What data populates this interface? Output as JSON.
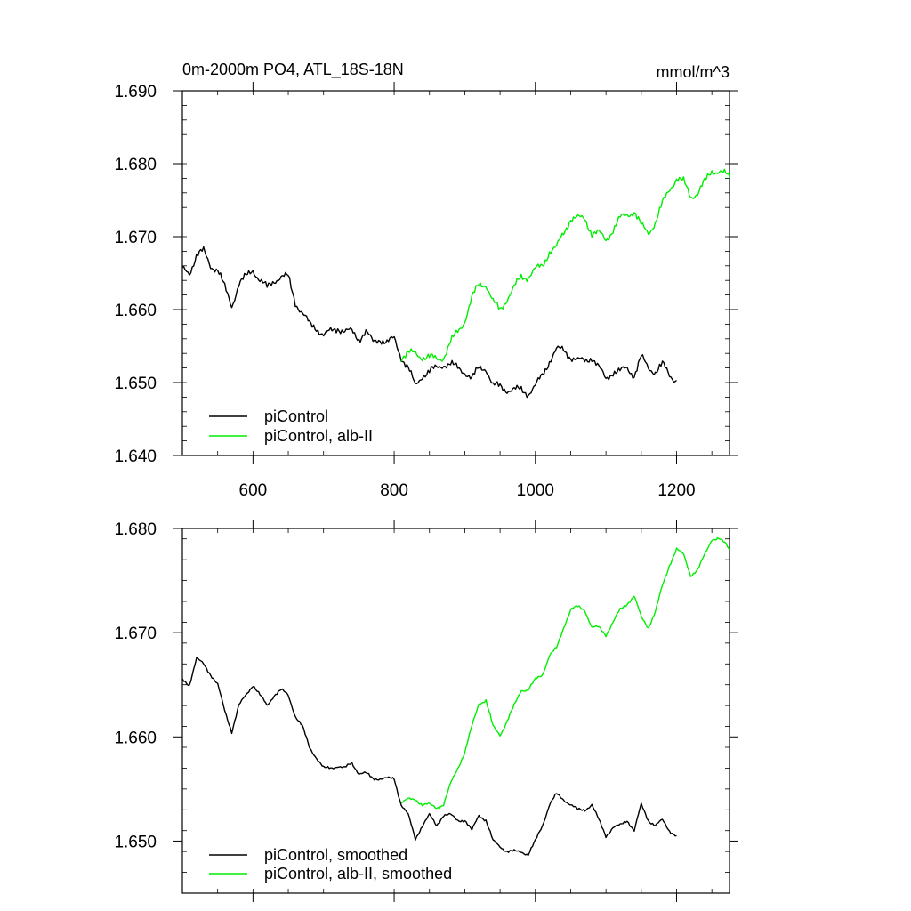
{
  "header": {
    "title": "0m-2000m PO4, ATL_18S-18N",
    "units": "mmol/m^3"
  },
  "colors": {
    "picontrol": "#000000",
    "alb_ii": "#00ee00",
    "frame": "#000000"
  },
  "chart_data": [
    {
      "type": "line",
      "title": "0m-2000m PO4, ATL_18S-18N",
      "units": "mmol/m^3",
      "xlim": [
        500,
        1275
      ],
      "ylim": [
        1.64,
        1.69
      ],
      "xticks": [
        600,
        800,
        1000,
        1200
      ],
      "xtick_labels": [
        "600",
        "800",
        "1000",
        "1200"
      ],
      "yticks": [
        1.64,
        1.65,
        1.66,
        1.67,
        1.68,
        1.69
      ],
      "ytick_labels": [
        "1.640",
        "1.650",
        "1.660",
        "1.670",
        "1.680",
        "1.690"
      ],
      "legend_placement": "bottom-left",
      "series": [
        {
          "name": "piControl",
          "color": "#000000",
          "x": [
            500,
            510,
            520,
            530,
            540,
            550,
            560,
            570,
            580,
            590,
            600,
            610,
            620,
            630,
            640,
            650,
            660,
            670,
            680,
            690,
            700,
            710,
            720,
            730,
            740,
            750,
            760,
            770,
            780,
            790,
            800,
            810,
            820,
            830,
            840,
            850,
            860,
            870,
            880,
            890,
            900,
            910,
            920,
            930,
            940,
            950,
            960,
            970,
            980,
            990,
            1000,
            1010,
            1020,
            1030,
            1040,
            1050,
            1060,
            1070,
            1080,
            1090,
            1100,
            1110,
            1120,
            1130,
            1140,
            1150,
            1160,
            1170,
            1180,
            1190,
            1200
          ],
          "y": [
            1.6655,
            1.665,
            1.6675,
            1.668,
            1.666,
            1.6655,
            1.663,
            1.6605,
            1.6635,
            1.6645,
            1.6655,
            1.664,
            1.663,
            1.664,
            1.6645,
            1.6645,
            1.661,
            1.6595,
            1.658,
            1.6575,
            1.6565,
            1.657,
            1.6575,
            1.657,
            1.657,
            1.656,
            1.657,
            1.6555,
            1.656,
            1.6555,
            1.656,
            1.6535,
            1.652,
            1.6495,
            1.651,
            1.6515,
            1.652,
            1.6525,
            1.6525,
            1.652,
            1.6515,
            1.6505,
            1.652,
            1.652,
            1.6495,
            1.6495,
            1.649,
            1.649,
            1.649,
            1.6485,
            1.6495,
            1.651,
            1.653,
            1.6545,
            1.6545,
            1.6535,
            1.653,
            1.653,
            1.6535,
            1.652,
            1.6505,
            1.6515,
            1.6515,
            1.652,
            1.651,
            1.6535,
            1.652,
            1.6515,
            1.6525,
            1.651,
            1.6503
          ]
        },
        {
          "name": "piControl, alb-II",
          "color": "#00ee00",
          "x": [
            810,
            820,
            830,
            840,
            850,
            860,
            870,
            880,
            890,
            900,
            910,
            920,
            930,
            940,
            950,
            960,
            970,
            980,
            990,
            1000,
            1010,
            1020,
            1030,
            1040,
            1050,
            1060,
            1070,
            1080,
            1090,
            1100,
            1110,
            1120,
            1130,
            1140,
            1150,
            1160,
            1170,
            1180,
            1190,
            1200,
            1210,
            1220,
            1230,
            1240,
            1250,
            1260,
            1270,
            1275
          ],
          "y": [
            1.6535,
            1.654,
            1.654,
            1.6535,
            1.6535,
            1.6532,
            1.6535,
            1.6555,
            1.657,
            1.6585,
            1.6615,
            1.6635,
            1.6635,
            1.661,
            1.66,
            1.6615,
            1.663,
            1.6645,
            1.6645,
            1.6655,
            1.666,
            1.668,
            1.6685,
            1.6705,
            1.6725,
            1.6725,
            1.6725,
            1.6705,
            1.6705,
            1.6695,
            1.671,
            1.6725,
            1.673,
            1.6735,
            1.6715,
            1.6705,
            1.672,
            1.6745,
            1.6765,
            1.678,
            1.6775,
            1.6755,
            1.676,
            1.6775,
            1.679,
            1.679,
            1.6785,
            1.678
          ]
        }
      ],
      "legend": [
        "piControl",
        "piControl, alb-II"
      ]
    },
    {
      "type": "line",
      "xlim": [
        500,
        1275
      ],
      "ylim": [
        1.645,
        1.68
      ],
      "xticks": [
        600,
        800,
        1000,
        1200
      ],
      "yticks": [
        1.65,
        1.66,
        1.67,
        1.68
      ],
      "ytick_labels": [
        "1.650",
        "1.660",
        "1.670",
        "1.680"
      ],
      "legend_placement": "bottom-left",
      "series": [
        {
          "name": "piControl, smoothed",
          "color": "#000000",
          "x": [
            500,
            510,
            520,
            530,
            540,
            550,
            560,
            570,
            580,
            590,
            600,
            610,
            620,
            630,
            640,
            650,
            660,
            670,
            680,
            690,
            700,
            710,
            720,
            730,
            740,
            750,
            760,
            770,
            780,
            790,
            800,
            810,
            820,
            830,
            840,
            850,
            860,
            870,
            880,
            890,
            900,
            910,
            920,
            930,
            940,
            950,
            960,
            970,
            980,
            990,
            1000,
            1010,
            1020,
            1030,
            1040,
            1050,
            1060,
            1070,
            1080,
            1090,
            1100,
            1110,
            1120,
            1130,
            1140,
            1150,
            1160,
            1170,
            1180,
            1190,
            1200
          ],
          "y": [
            1.6655,
            1.665,
            1.6675,
            1.667,
            1.666,
            1.665,
            1.6625,
            1.6605,
            1.663,
            1.664,
            1.665,
            1.664,
            1.663,
            1.664,
            1.6645,
            1.664,
            1.662,
            1.661,
            1.659,
            1.658,
            1.657,
            1.657,
            1.6572,
            1.657,
            1.6575,
            1.6565,
            1.6565,
            1.656,
            1.656,
            1.656,
            1.656,
            1.6535,
            1.6525,
            1.6502,
            1.6515,
            1.6525,
            1.6515,
            1.6525,
            1.6525,
            1.652,
            1.652,
            1.651,
            1.6525,
            1.652,
            1.65,
            1.6495,
            1.649,
            1.649,
            1.649,
            1.6487,
            1.65,
            1.6515,
            1.6535,
            1.6545,
            1.654,
            1.6535,
            1.653,
            1.653,
            1.6535,
            1.652,
            1.6505,
            1.6513,
            1.6515,
            1.652,
            1.651,
            1.6535,
            1.652,
            1.6515,
            1.652,
            1.651,
            1.6505
          ]
        },
        {
          "name": "piControl, alb-II, smoothed",
          "color": "#00ee00",
          "x": [
            810,
            820,
            830,
            840,
            850,
            860,
            870,
            880,
            890,
            900,
            910,
            920,
            930,
            940,
            950,
            960,
            970,
            980,
            990,
            1000,
            1010,
            1020,
            1030,
            1040,
            1050,
            1060,
            1070,
            1080,
            1090,
            1100,
            1110,
            1120,
            1130,
            1140,
            1150,
            1160,
            1170,
            1180,
            1190,
            1200,
            1210,
            1220,
            1230,
            1240,
            1250,
            1260,
            1270,
            1275
          ],
          "y": [
            1.6537,
            1.654,
            1.654,
            1.6535,
            1.6535,
            1.6532,
            1.6535,
            1.6555,
            1.657,
            1.6585,
            1.661,
            1.6632,
            1.6635,
            1.661,
            1.6602,
            1.6615,
            1.663,
            1.6645,
            1.6645,
            1.6655,
            1.666,
            1.6678,
            1.6685,
            1.6705,
            1.6722,
            1.6725,
            1.6722,
            1.6705,
            1.6705,
            1.6698,
            1.671,
            1.6722,
            1.6728,
            1.6735,
            1.6715,
            1.6705,
            1.672,
            1.6745,
            1.6765,
            1.678,
            1.6775,
            1.6755,
            1.676,
            1.6775,
            1.679,
            1.679,
            1.6785,
            1.678
          ]
        }
      ],
      "legend": [
        "piControl, smoothed",
        "piControl, alb-II, smoothed"
      ]
    }
  ]
}
